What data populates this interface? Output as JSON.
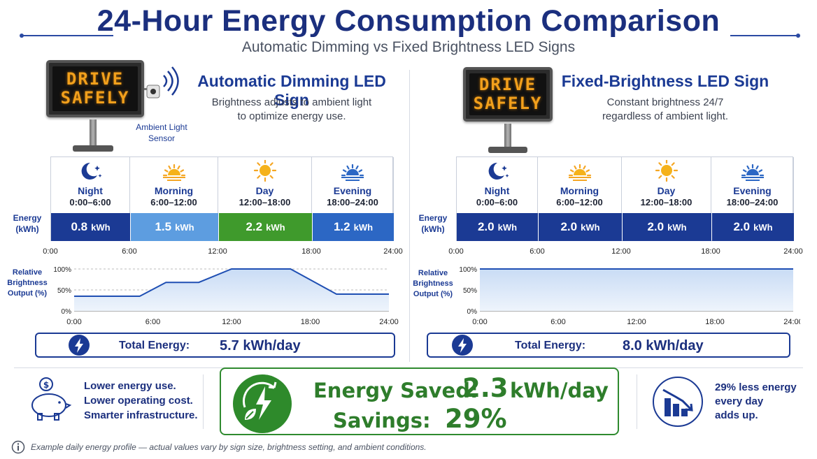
{
  "header": {
    "title": "24-Hour Energy Consumption Comparison",
    "subtitle": "Automatic Dimming vs Fixed Brightness LED Signs"
  },
  "left": {
    "sign_lines": [
      "DRIVE",
      "SAFELY"
    ],
    "sensor_label_1": "Ambient Light",
    "sensor_label_2": "Sensor",
    "title": "Automatic Dimming LED Sign",
    "desc_1": "Brightness adjusts to ambient light",
    "desc_2": "to optimize energy use.",
    "energy_label_1": "Energy",
    "energy_label_2": "(kWh)",
    "periods": [
      {
        "name": "Night",
        "time": "0:00–6:00",
        "value": "0.8",
        "unit": "kWh",
        "color": "#1b3a94",
        "icon": "moon-stars-icon"
      },
      {
        "name": "Morning",
        "time": "6:00–12:00",
        "value": "1.5",
        "unit": "kWh",
        "color": "#5d9de0",
        "icon": "sunrise-icon"
      },
      {
        "name": "Day",
        "time": "12:00–18:00",
        "value": "2.2",
        "unit": "kWh",
        "color": "#3f9a2c",
        "icon": "sun-icon"
      },
      {
        "name": "Evening",
        "time": "18:00–24:00",
        "value": "1.2",
        "unit": "kWh",
        "color": "#2c67c4",
        "icon": "sunset-icon"
      }
    ],
    "time_ticks": [
      "0:00",
      "6:00",
      "12:00",
      "18:00",
      "24:00"
    ],
    "chart_ylabel_1": "Relative",
    "chart_ylabel_2": "Brightness",
    "chart_ylabel_3": "Output (%)",
    "y_ticks": [
      "100%",
      "50%",
      "0%"
    ],
    "total_label": "Total Energy:",
    "total_value": "5.7 kWh/day"
  },
  "right": {
    "sign_lines": [
      "DRIVE",
      "SAFELY"
    ],
    "title": "Fixed-Brightness LED Sign",
    "desc_1": "Constant brightness 24/7",
    "desc_2": "regardless of ambient light.",
    "energy_label_1": "Energy",
    "energy_label_2": "(kWh)",
    "periods": [
      {
        "name": "Night",
        "time": "0:00–6:00",
        "value": "2.0",
        "unit": "kWh",
        "color": "#1b3a94",
        "icon": "moon-stars-icon"
      },
      {
        "name": "Morning",
        "time": "6:00–12:00",
        "value": "2.0",
        "unit": "kWh",
        "color": "#1b3a94",
        "icon": "sunrise-icon"
      },
      {
        "name": "Day",
        "time": "12:00–18:00",
        "value": "2.0",
        "unit": "kWh",
        "color": "#1b3a94",
        "icon": "sun-icon"
      },
      {
        "name": "Evening",
        "time": "18:00–24:00",
        "value": "2.0",
        "unit": "kWh",
        "color": "#1b3a94",
        "icon": "sunset-icon"
      }
    ],
    "time_ticks": [
      "0:00",
      "6:00",
      "12:00",
      "18:00",
      "24:00"
    ],
    "chart_ylabel_1": "Relative",
    "chart_ylabel_2": "Brightness",
    "chart_ylabel_3": "Output (%)",
    "y_ticks": [
      "100%",
      "50%",
      "0%"
    ],
    "total_label": "Total Energy:",
    "total_value": "8.0 kWh/day"
  },
  "chart_data": [
    {
      "type": "area",
      "x": [
        0,
        5,
        7,
        9.5,
        12,
        16.5,
        20,
        24
      ],
      "y": [
        35,
        35,
        68,
        68,
        100,
        100,
        40,
        40
      ],
      "xlim": [
        0,
        24
      ],
      "ylim": [
        0,
        100
      ],
      "ylabel": "Relative Brightness Output (%)"
    },
    {
      "type": "area",
      "x": [
        0,
        24
      ],
      "y": [
        100,
        100
      ],
      "xlim": [
        0,
        24
      ],
      "ylim": [
        0,
        100
      ],
      "ylabel": "Relative Brightness Output (%)"
    }
  ],
  "benefits": {
    "line_1": "Lower energy use.",
    "line_2": "Lower operating cost.",
    "line_3": "Smarter infrastructure."
  },
  "savings": {
    "saved_label": "Energy Saved:",
    "saved_value": "2.3",
    "saved_unit": "kWh/day",
    "pct_label": "Savings:",
    "pct_value": "29%"
  },
  "trend": {
    "line_1": "29% less energy",
    "line_2": "every day",
    "line_3": "adds up."
  },
  "footnote": "Example daily energy profile — actual values vary by sign size, brightness setting, and ambient conditions.",
  "colors": {
    "brand": "#1b2f7e",
    "green": "#2e7d2b",
    "led_amber": "#f2a01c"
  }
}
